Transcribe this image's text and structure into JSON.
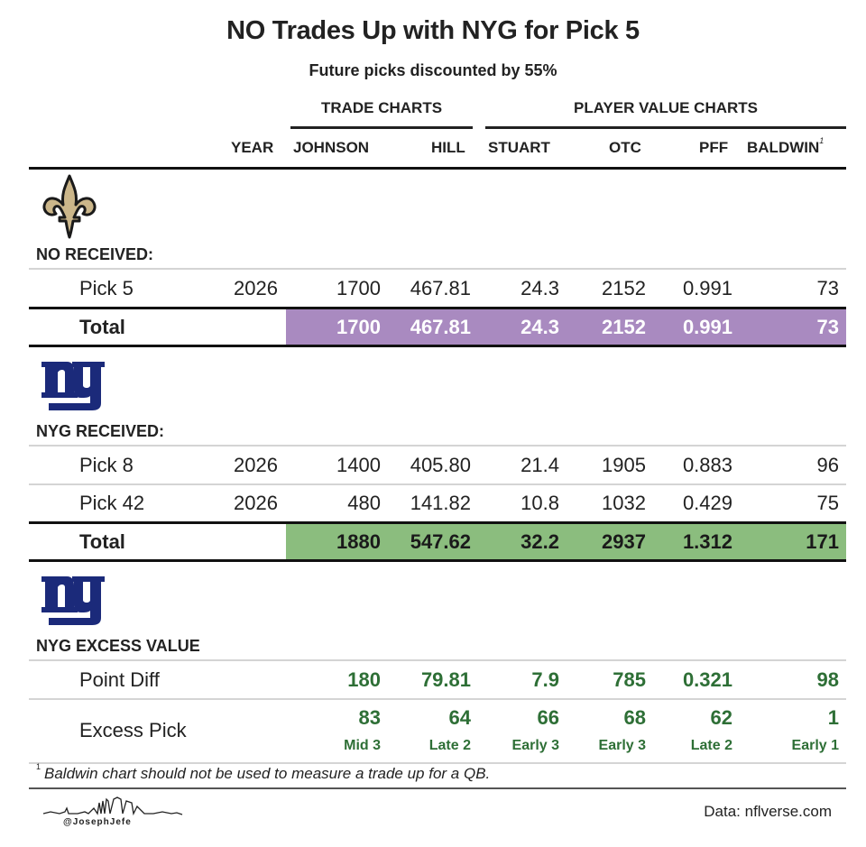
{
  "chart_data": {
    "type": "table",
    "title": "NO Trades Up with NYG for Pick 5",
    "subtitle": "Future picks discounted by 55%",
    "column_groups": [
      {
        "label": "TRADE CHARTS",
        "columns": [
          "JOHNSON",
          "HILL"
        ]
      },
      {
        "label": "PLAYER VALUE CHARTS",
        "columns": [
          "STUART",
          "OTC",
          "PFF",
          "BALDWIN"
        ]
      }
    ],
    "columns": [
      "YEAR",
      "JOHNSON",
      "HILL",
      "STUART",
      "OTC",
      "PFF",
      "BALDWIN"
    ],
    "baldwin_footnote_marker": "1",
    "sections": [
      {
        "team": "NO",
        "logo": "saints-fleur-de-lis-icon",
        "label": "NO RECEIVED:",
        "rows": [
          {
            "label": "Pick 5",
            "year": "2026",
            "values": [
              "1700",
              "467.81",
              "24.3",
              "2152",
              "0.991",
              "73"
            ]
          }
        ],
        "total": {
          "label": "Total",
          "values": [
            "1700",
            "467.81",
            "24.3",
            "2152",
            "0.991",
            "73"
          ]
        },
        "total_color": "#a98ac0"
      },
      {
        "team": "NYG",
        "logo": "giants-ny-icon",
        "label": "NYG RECEIVED:",
        "rows": [
          {
            "label": "Pick 8",
            "year": "2026",
            "values": [
              "1400",
              "405.80",
              "21.4",
              "1905",
              "0.883",
              "96"
            ]
          },
          {
            "label": "Pick 42",
            "year": "2026",
            "values": [
              "480",
              "141.82",
              "10.8",
              "1032",
              "0.429",
              "75"
            ]
          }
        ],
        "total": {
          "label": "Total",
          "values": [
            "1880",
            "547.62",
            "32.2",
            "2937",
            "1.312",
            "171"
          ]
        },
        "total_color": "#8bbd7e"
      }
    ],
    "excess": {
      "logo": "giants-ny-icon",
      "label": "NYG EXCESS VALUE",
      "point_diff": {
        "label": "Point Diff",
        "values": [
          "180",
          "79.81",
          "7.9",
          "785",
          "0.321",
          "98"
        ]
      },
      "excess_pick": {
        "label": "Excess Pick",
        "values": [
          "83",
          "64",
          "66",
          "68",
          "62",
          "1"
        ],
        "rounds": [
          "Mid 3",
          "Late 2",
          "Early 3",
          "Early 3",
          "Late 2",
          "Early 1"
        ]
      },
      "color": "#2e6f36"
    },
    "footnote": {
      "marker": "1",
      "text": "Baldwin chart should not be used to measure a trade up for a QB."
    },
    "credit": "@JosephJefe",
    "source": "Data: nflverse.com"
  }
}
